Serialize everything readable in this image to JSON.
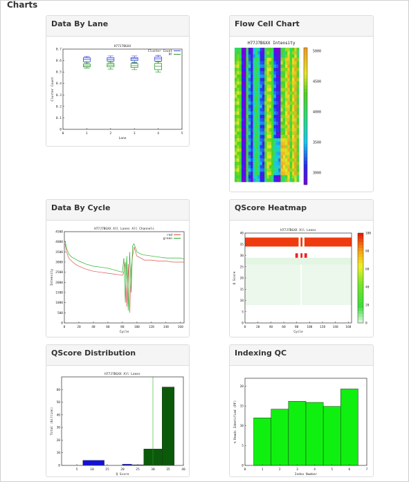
{
  "section": {
    "title": "Charts"
  },
  "panels": [
    {
      "title": "Data By Lane"
    },
    {
      "title": "Flow Cell Chart"
    },
    {
      "title": "Data By Cycle"
    },
    {
      "title": "QScore Heatmap"
    },
    {
      "title": "QScore Distribution"
    },
    {
      "title": "Indexing QC"
    }
  ],
  "chart_data": [
    {
      "id": "data-by-lane",
      "type": "box",
      "title": "H77J7BGXX",
      "xlabel": "Lane",
      "ylabel": "Cluster Count",
      "xlim": [
        0,
        5
      ],
      "ylim": [
        0,
        0.7
      ],
      "xticks": [
        0,
        1,
        2,
        3,
        4,
        5
      ],
      "yticks": [
        0,
        0.1,
        0.2,
        0.3,
        0.4,
        0.5,
        0.6,
        0.7
      ],
      "legend": {
        "placement": "top-right",
        "items": [
          {
            "name": "Cluster Count",
            "color": "#3b46d6"
          },
          {
            "name": "PF",
            "color": "#2a9a2a"
          }
        ]
      },
      "series": [
        {
          "name": "Cluster Count",
          "color": "#3b46d6",
          "boxes": [
            {
              "x": 1,
              "min": 0.57,
              "q1": 0.59,
              "med": 0.61,
              "q3": 0.625,
              "max": 0.635
            },
            {
              "x": 2,
              "min": 0.575,
              "q1": 0.595,
              "med": 0.61,
              "q3": 0.625,
              "max": 0.64
            },
            {
              "x": 3,
              "min": 0.58,
              "q1": 0.6,
              "med": 0.615,
              "q3": 0.625,
              "max": 0.64
            },
            {
              "x": 4,
              "min": 0.57,
              "q1": 0.595,
              "med": 0.615,
              "q3": 0.63,
              "max": 0.645
            }
          ]
        },
        {
          "name": "PF",
          "color": "#2a9a2a",
          "boxes": [
            {
              "x": 1,
              "min": 0.535,
              "q1": 0.545,
              "med": 0.555,
              "q3": 0.57,
              "max": 0.58
            },
            {
              "x": 2,
              "min": 0.525,
              "q1": 0.545,
              "med": 0.56,
              "q3": 0.575,
              "max": 0.585
            },
            {
              "x": 3,
              "min": 0.52,
              "q1": 0.54,
              "med": 0.555,
              "q3": 0.575,
              "max": 0.585
            },
            {
              "x": 4,
              "min": 0.5,
              "q1": 0.52,
              "med": 0.55,
              "q3": 0.575,
              "max": 0.59
            }
          ]
        }
      ]
    },
    {
      "id": "flow-cell",
      "type": "heatmap",
      "title": "H77J7BGXX Intensity",
      "colorbar_ticks": [
        5000,
        4500,
        4000,
        3500,
        3000
      ],
      "colorbar_range": [
        2800,
        5050
      ],
      "columns": [
        4400,
        4500,
        4300,
        3000,
        2900,
        4200,
        3400,
        3100,
        3800,
        4100,
        3800,
        3300,
        3200,
        4300,
        4600,
        4500,
        4200,
        3300,
        3100,
        3000,
        4400,
        4300,
        4600,
        4900,
        4300,
        4600,
        5000,
        4300
      ],
      "rows": 40
    },
    {
      "id": "data-by-cycle",
      "type": "line",
      "title": "H77J7BGXX All Lanes All Channels",
      "xlabel": "Cycle",
      "ylabel": "Intensity",
      "xlim": [
        0,
        165
      ],
      "ylim": [
        0,
        4500
      ],
      "xticks": [
        0,
        20,
        40,
        60,
        80,
        100,
        120,
        140,
        160
      ],
      "yticks": [
        0,
        500,
        1000,
        1500,
        2000,
        2500,
        3000,
        3500,
        4000,
        4500
      ],
      "legend": {
        "placement": "top-right",
        "items": [
          {
            "name": "red",
            "color": "#e05050"
          },
          {
            "name": "green",
            "color": "#20b020"
          }
        ]
      },
      "series": [
        {
          "name": "red",
          "color": "#e05050",
          "x": [
            1,
            3,
            6,
            10,
            15,
            20,
            30,
            40,
            50,
            60,
            70,
            75,
            80,
            82,
            84,
            86,
            88,
            90,
            92,
            94,
            96,
            98,
            100,
            105,
            110,
            120,
            130,
            140,
            150,
            160,
            165
          ],
          "values": [
            3900,
            3500,
            3200,
            3050,
            2900,
            2800,
            2650,
            2550,
            2500,
            2450,
            2400,
            2380,
            2350,
            2500,
            3000,
            800,
            2900,
            500,
            2600,
            3300,
            3750,
            3500,
            3300,
            3200,
            3100,
            3100,
            3050,
            3050,
            3000,
            3000,
            3000
          ]
        },
        {
          "name": "green",
          "color": "#20b020",
          "x": [
            1,
            3,
            6,
            10,
            15,
            20,
            30,
            40,
            50,
            60,
            70,
            75,
            80,
            82,
            84,
            86,
            88,
            90,
            92,
            94,
            96,
            98,
            100,
            105,
            110,
            120,
            130,
            140,
            150,
            160,
            165
          ],
          "values": [
            4050,
            3700,
            3400,
            3250,
            3150,
            3050,
            2900,
            2800,
            2750,
            2700,
            2600,
            2550,
            2500,
            3200,
            1000,
            3300,
            600,
            3500,
            1500,
            3800,
            3900,
            3700,
            3500,
            3400,
            3350,
            3300,
            3250,
            3200,
            3200,
            3200,
            3150
          ]
        }
      ]
    },
    {
      "id": "qscore-heatmap",
      "type": "heatmap",
      "title": "H77J7BGXX All Lanes",
      "xlabel": "Cycle",
      "ylabel": "Q Score",
      "xlim": [
        0,
        165
      ],
      "ylim": [
        0,
        40
      ],
      "xticks": [
        0,
        20,
        40,
        60,
        80,
        100,
        120,
        140,
        160
      ],
      "yticks": [
        0,
        5,
        10,
        15,
        20,
        25,
        30,
        35,
        40
      ],
      "colorbar_ticks": [
        0,
        20,
        40,
        60,
        80,
        100
      ],
      "bands": [
        {
          "y0": 34,
          "y1": 38,
          "color": "#ee3b10"
        },
        {
          "y0": 31,
          "y1": 34,
          "color": "#ffffff"
        },
        {
          "y0": 29,
          "y1": 31,
          "color": "#ffffff"
        },
        {
          "y0": 26,
          "y1": 29,
          "color": "#e3f5e3"
        },
        {
          "y0": 8,
          "y1": 26,
          "color": "#ecf8ec"
        }
      ]
    },
    {
      "id": "qscore-distribution",
      "type": "bar",
      "title": "H77J7BGXX All Lanes",
      "xlabel": "Q Score",
      "ylabel": "Total (billion)",
      "xlim": [
        0,
        40
      ],
      "ylim": [
        0,
        70
      ],
      "xticks": [
        5,
        10,
        15,
        20,
        25,
        30,
        35,
        40
      ],
      "yticks": [
        0,
        10,
        20,
        30,
        40,
        50,
        60
      ],
      "threshold": 30,
      "bars": [
        {
          "x0": 7,
          "x1": 14,
          "value": 4,
          "color": "#1010e0"
        },
        {
          "x0": 20,
          "x1": 23,
          "value": 1,
          "color": "#1010e0"
        },
        {
          "x0": 23,
          "x1": 27,
          "value": 0.5,
          "color": "#1010e0"
        },
        {
          "x0": 27,
          "x1": 30,
          "value": 13,
          "color": "#0a5a0a"
        },
        {
          "x0": 30,
          "x1": 33,
          "value": 13,
          "color": "#0a5a0a"
        },
        {
          "x0": 33,
          "x1": 37,
          "value": 62,
          "color": "#0a5a0a"
        }
      ]
    },
    {
      "id": "indexing-qc",
      "type": "bar",
      "title": "",
      "xlabel": "Index Number",
      "ylabel": "% Reads Identified (PF)",
      "xlim": [
        0,
        7
      ],
      "ylim": [
        0,
        22
      ],
      "xticks": [
        0,
        1,
        2,
        3,
        4,
        5,
        6,
        7
      ],
      "yticks": [
        0,
        5,
        10,
        15,
        20
      ],
      "categories": [
        1,
        2,
        3,
        4,
        5,
        6
      ],
      "values": [
        12,
        14.2,
        16.2,
        15.9,
        14.9,
        19.3
      ],
      "color": "#10f010"
    }
  ]
}
